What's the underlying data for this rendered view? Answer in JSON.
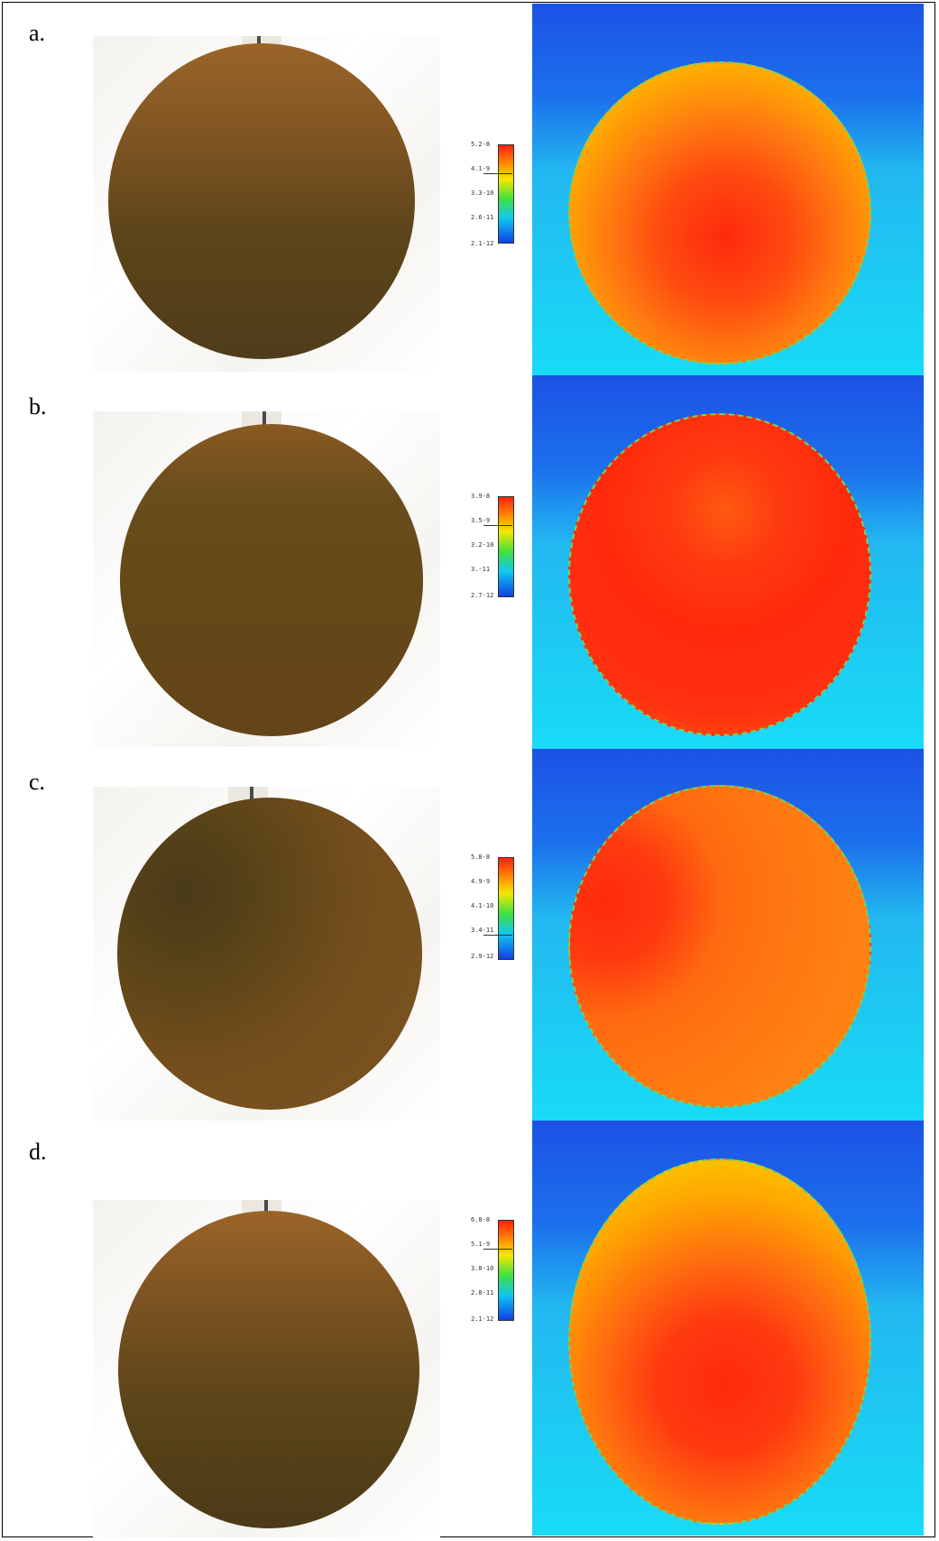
{
  "panels": [
    {
      "label": "a.",
      "legend": [
        "5.2-8",
        "4.1-9",
        "3.3-10",
        "2.6-11",
        "2.1-12"
      ],
      "legend_marked_index": 1
    },
    {
      "label": "b.",
      "legend": [
        "3.9-8",
        "3.5-9",
        "3.2-10",
        "3.-11",
        "2.7-12"
      ],
      "legend_marked_index": 1
    },
    {
      "label": "c.",
      "legend": [
        "5.8-8",
        "4.9-9",
        "4.1-10",
        "3.4-11",
        "2.9-12"
      ],
      "legend_marked_index": 3
    },
    {
      "label": "d.",
      "legend": [
        "6.8-8",
        "5.1-9",
        "3.8-10",
        "2.8-11",
        "2.1-12"
      ],
      "legend_marked_index": 1
    }
  ],
  "colors": {
    "wafer_light": "#9b6428",
    "wafer_dark": "#4f3c1a",
    "sim_background_top": "#1e5ee8",
    "sim_background_bottom": "#18e0f4",
    "sim_hot": "#ff2a0c",
    "sim_mid": "#ffa800",
    "sim_cool": "#f2e600"
  }
}
